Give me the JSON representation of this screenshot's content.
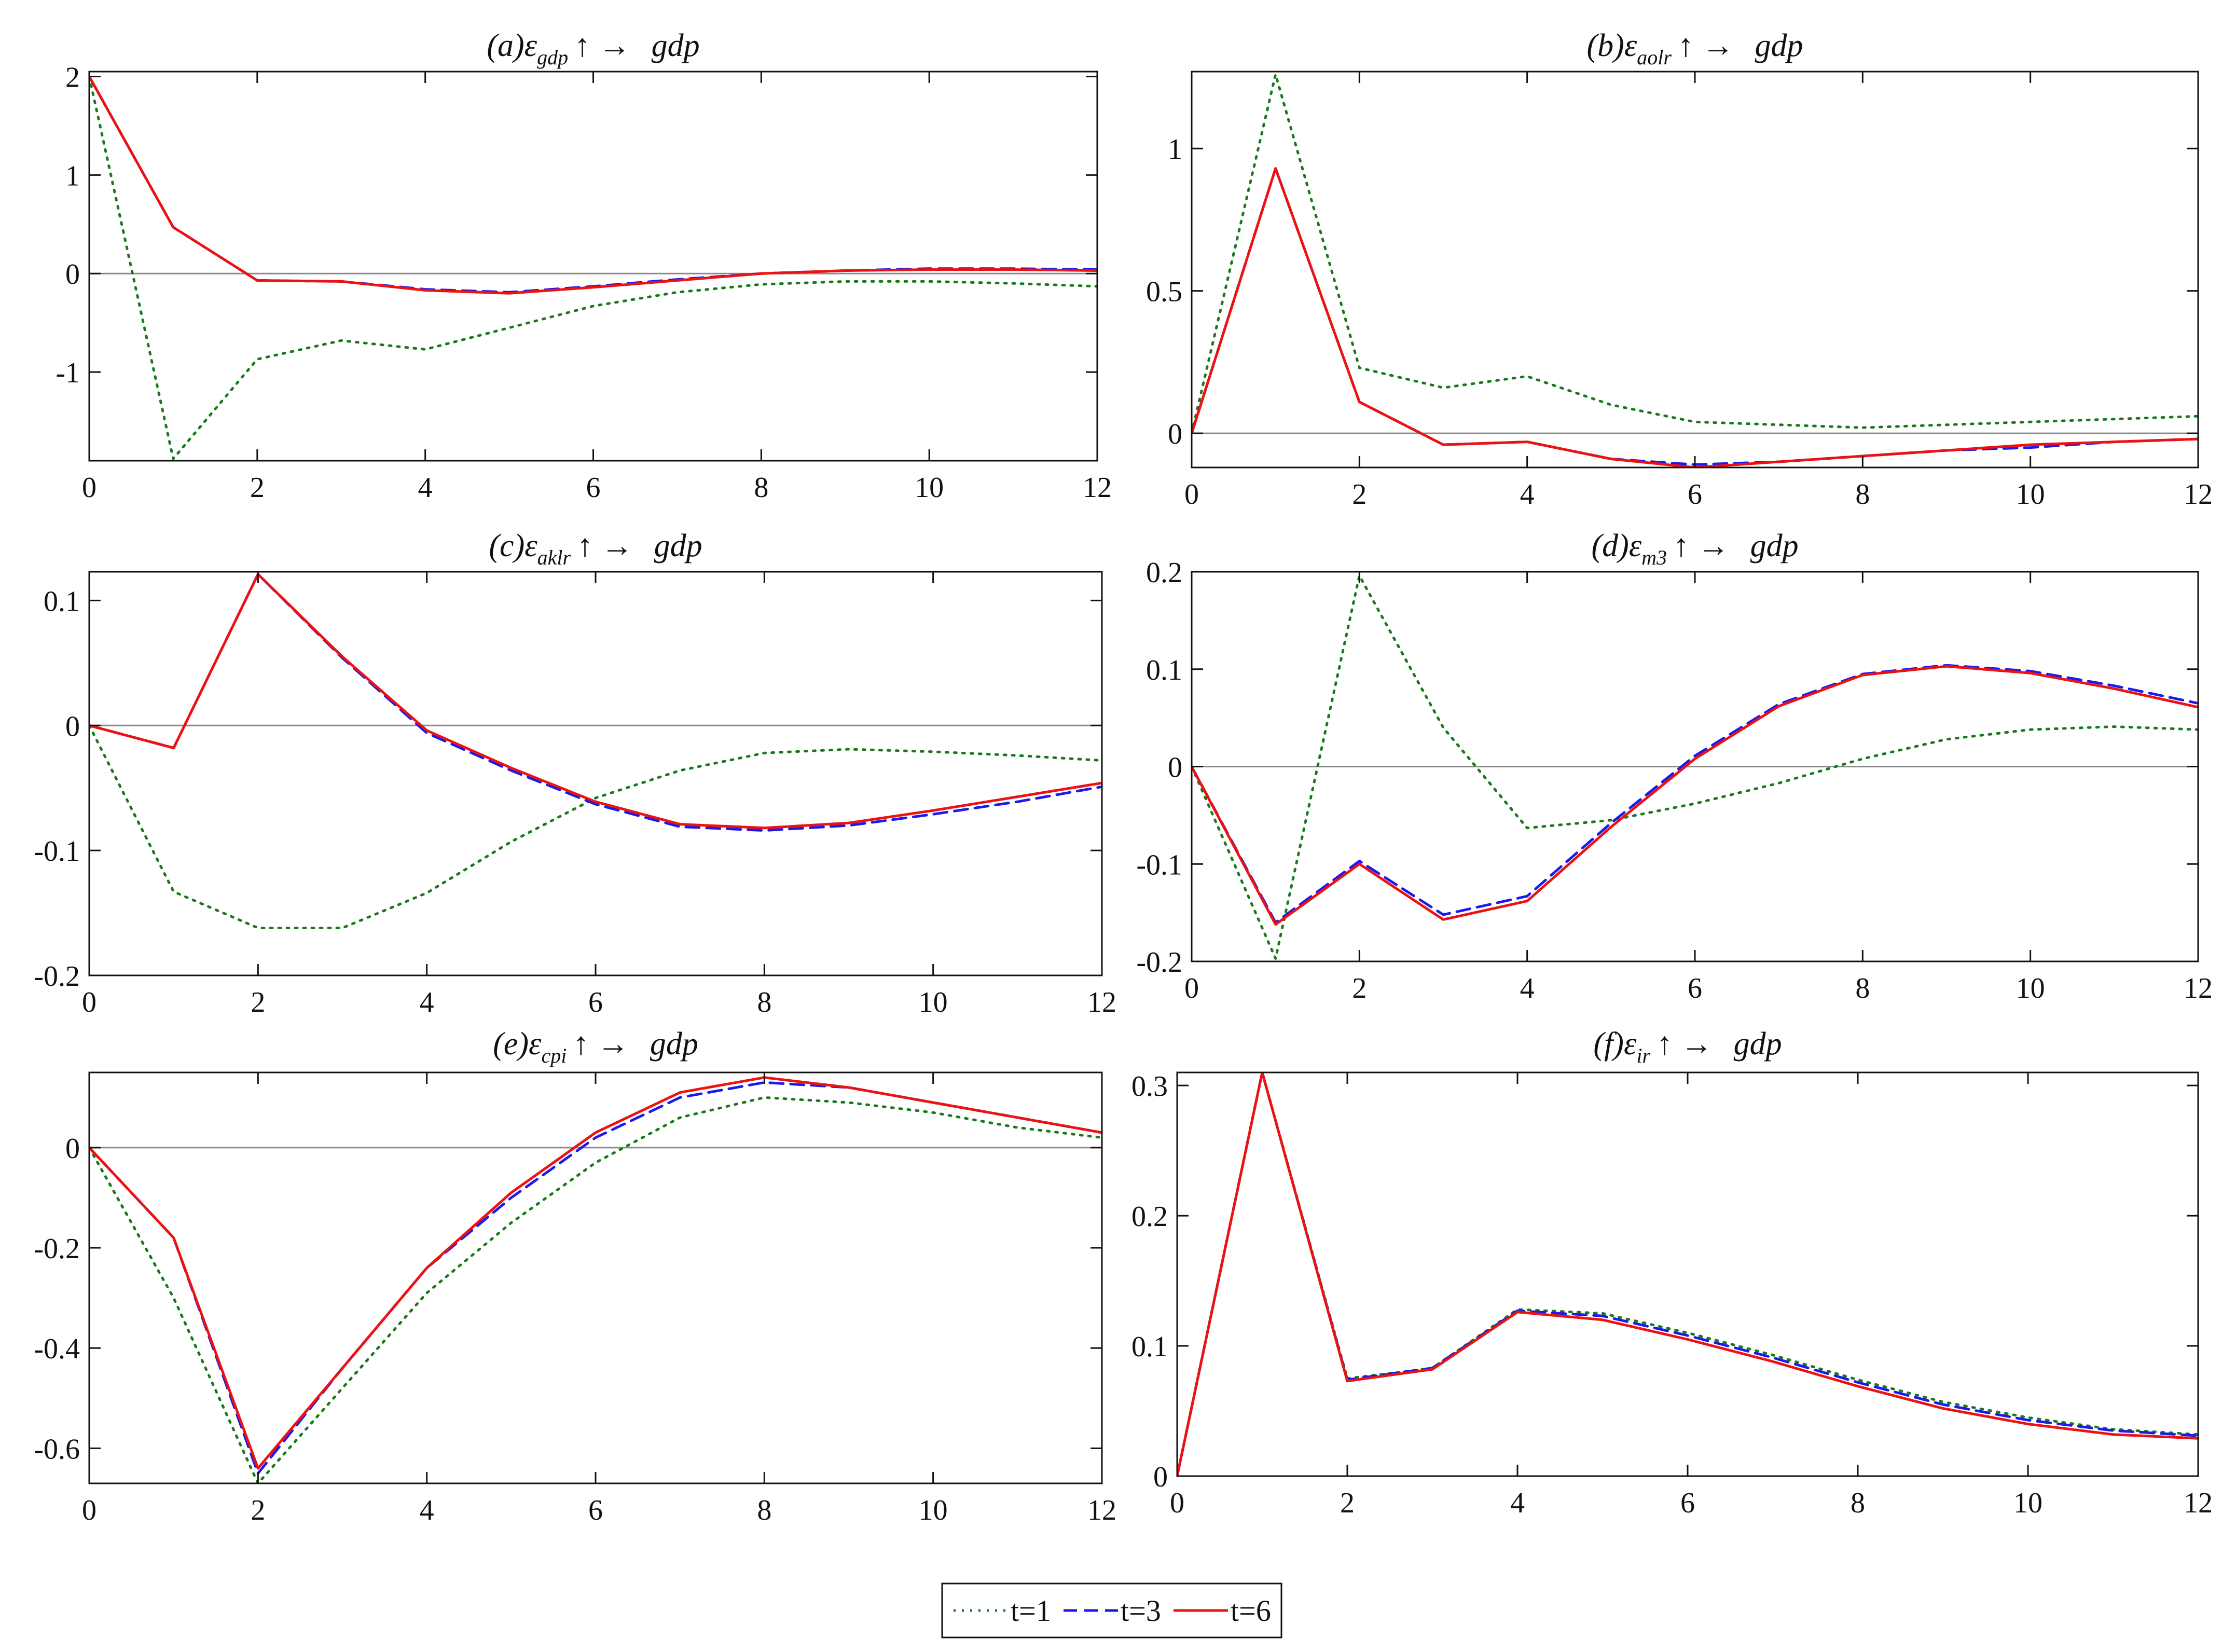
{
  "legend": {
    "entries": [
      {
        "label": "t=1",
        "color": "#1a7a1a",
        "style": "dotted"
      },
      {
        "label": "t=3",
        "color": "#1a1aee",
        "style": "dashed"
      },
      {
        "label": "t=6",
        "color": "#ee1111",
        "style": "solid"
      }
    ]
  },
  "chart_data": [
    {
      "type": "line",
      "title": {
        "prefix": "(a)",
        "eps": "ε",
        "sub": "gdp",
        "arrow": "↑ →",
        "target": "gdp"
      },
      "xlim": [
        0,
        12
      ],
      "ylim": [
        -1.9,
        2.05
      ],
      "xticks": [
        0,
        2,
        4,
        6,
        8,
        10,
        12
      ],
      "xtick_labels": [
        "0",
        "2",
        "4",
        "6",
        "8",
        "10",
        "12"
      ],
      "yticks": [
        -1,
        0,
        1,
        2
      ],
      "ytick_labels": [
        "-1",
        "0",
        "1",
        "2"
      ],
      "x": [
        0,
        1,
        2,
        3,
        4,
        5,
        6,
        7,
        8,
        9,
        10,
        11,
        12
      ],
      "series": [
        {
          "name": "t=1",
          "values": [
            2.0,
            -1.88,
            -0.87,
            -0.68,
            -0.77,
            -0.55,
            -0.33,
            -0.19,
            -0.11,
            -0.08,
            -0.08,
            -0.1,
            -0.13
          ]
        },
        {
          "name": "t=3",
          "values": [
            2.0,
            0.47,
            -0.07,
            -0.08,
            -0.16,
            -0.19,
            -0.13,
            -0.06,
            0.0,
            0.03,
            0.05,
            0.05,
            0.04
          ]
        },
        {
          "name": "t=6",
          "values": [
            2.0,
            0.47,
            -0.07,
            -0.08,
            -0.17,
            -0.2,
            -0.14,
            -0.07,
            0.0,
            0.03,
            0.04,
            0.04,
            0.03
          ]
        }
      ]
    },
    {
      "type": "line",
      "title": {
        "prefix": "(b)",
        "eps": "ε",
        "sub": "aolr",
        "arrow": "↑ →",
        "target": "gdp"
      },
      "xlim": [
        0,
        12
      ],
      "ylim": [
        -0.12,
        1.27
      ],
      "xticks": [
        0,
        2,
        4,
        6,
        8,
        10,
        12
      ],
      "xtick_labels": [
        "0",
        "2",
        "4",
        "6",
        "8",
        "10",
        "12"
      ],
      "yticks": [
        0,
        0.5,
        1
      ],
      "ytick_labels": [
        "0",
        "0.5",
        "1"
      ],
      "x": [
        0,
        1,
        2,
        3,
        4,
        5,
        6,
        7,
        8,
        9,
        10,
        11,
        12
      ],
      "series": [
        {
          "name": "t=1",
          "values": [
            0.0,
            1.26,
            0.23,
            0.16,
            0.2,
            0.1,
            0.04,
            0.03,
            0.02,
            0.03,
            0.04,
            0.05,
            0.06
          ]
        },
        {
          "name": "t=3",
          "values": [
            0.0,
            0.93,
            0.11,
            -0.04,
            -0.03,
            -0.09,
            -0.11,
            -0.1,
            -0.08,
            -0.06,
            -0.05,
            -0.03,
            -0.02
          ]
        },
        {
          "name": "t=6",
          "values": [
            0.0,
            0.93,
            0.11,
            -0.04,
            -0.03,
            -0.09,
            -0.12,
            -0.1,
            -0.08,
            -0.06,
            -0.04,
            -0.03,
            -0.02
          ]
        }
      ]
    },
    {
      "type": "line",
      "title": {
        "prefix": "(c)",
        "eps": "ε",
        "sub": "aklr",
        "arrow": "↑ →",
        "target": "gdp"
      },
      "xlim": [
        0,
        12
      ],
      "ylim": [
        -0.2,
        0.123
      ],
      "xticks": [
        0,
        2,
        4,
        6,
        8,
        10,
        12
      ],
      "xtick_labels": [
        "0",
        "2",
        "4",
        "6",
        "8",
        "10",
        "12"
      ],
      "yticks": [
        -0.2,
        -0.1,
        0,
        0.1
      ],
      "ytick_labels": [
        "-0.2",
        "-0.1",
        "0",
        "0.1"
      ],
      "x": [
        0,
        1,
        2,
        3,
        4,
        5,
        6,
        7,
        8,
        9,
        10,
        11,
        12
      ],
      "series": [
        {
          "name": "t=1",
          "values": [
            0.0,
            -0.133,
            -0.162,
            -0.162,
            -0.134,
            -0.093,
            -0.058,
            -0.036,
            -0.022,
            -0.019,
            -0.021,
            -0.024,
            -0.028
          ]
        },
        {
          "name": "t=3",
          "values": [
            0.0,
            -0.018,
            0.121,
            0.054,
            -0.006,
            -0.036,
            -0.063,
            -0.081,
            -0.084,
            -0.08,
            -0.071,
            -0.061,
            -0.049
          ]
        },
        {
          "name": "t=6",
          "values": [
            0.0,
            -0.018,
            0.121,
            0.055,
            -0.004,
            -0.034,
            -0.061,
            -0.079,
            -0.082,
            -0.078,
            -0.068,
            -0.057,
            -0.046
          ]
        }
      ]
    },
    {
      "type": "line",
      "title": {
        "prefix": "(d)",
        "eps": "ε",
        "sub": "m3",
        "arrow": "↑ →",
        "target": "gdp"
      },
      "xlim": [
        0,
        12
      ],
      "ylim": [
        -0.2,
        0.2
      ],
      "xticks": [
        0,
        2,
        4,
        6,
        8,
        10,
        12
      ],
      "xtick_labels": [
        "0",
        "2",
        "4",
        "6",
        "8",
        "10",
        "12"
      ],
      "yticks": [
        -0.2,
        -0.1,
        0,
        0.1,
        0.2
      ],
      "ytick_labels": [
        "-0.2",
        "-0.1",
        "0",
        "0.1",
        "0.2"
      ],
      "x": [
        0,
        1,
        2,
        3,
        4,
        5,
        6,
        7,
        8,
        9,
        10,
        11,
        12
      ],
      "series": [
        {
          "name": "t=1",
          "values": [
            0.0,
            -0.197,
            0.196,
            0.04,
            -0.063,
            -0.055,
            -0.038,
            -0.017,
            0.008,
            0.028,
            0.038,
            0.041,
            0.038
          ]
        },
        {
          "name": "t=3",
          "values": [
            0.0,
            -0.16,
            -0.097,
            -0.152,
            -0.133,
            -0.058,
            0.011,
            0.064,
            0.095,
            0.104,
            0.098,
            0.083,
            0.065
          ]
        },
        {
          "name": "t=6",
          "values": [
            0.0,
            -0.162,
            -0.1,
            -0.157,
            -0.138,
            -0.062,
            0.008,
            0.062,
            0.094,
            0.103,
            0.096,
            0.08,
            0.061
          ]
        }
      ]
    },
    {
      "type": "line",
      "title": {
        "prefix": "(e)",
        "eps": "ε",
        "sub": "cpi",
        "arrow": "↑ →",
        "target": "gdp"
      },
      "xlim": [
        0,
        12
      ],
      "ylim": [
        -0.67,
        0.15
      ],
      "xticks": [
        0,
        2,
        4,
        6,
        8,
        10,
        12
      ],
      "xtick_labels": [
        "0",
        "2",
        "4",
        "6",
        "8",
        "10",
        "12"
      ],
      "yticks": [
        -0.6,
        -0.4,
        -0.2,
        0
      ],
      "ytick_labels": [
        "-0.6",
        "-0.4",
        "-0.2",
        "0"
      ],
      "x": [
        0,
        1,
        2,
        3,
        4,
        5,
        6,
        7,
        8,
        9,
        10,
        11,
        12
      ],
      "series": [
        {
          "name": "t=1",
          "values": [
            0.0,
            -0.3,
            -0.67,
            -0.48,
            -0.29,
            -0.15,
            -0.03,
            0.06,
            0.1,
            0.09,
            0.07,
            0.04,
            0.02
          ]
        },
        {
          "name": "t=3",
          "values": [
            0.0,
            -0.18,
            -0.65,
            -0.44,
            -0.24,
            -0.1,
            0.02,
            0.1,
            0.13,
            0.12,
            0.09,
            0.06,
            0.03
          ]
        },
        {
          "name": "t=6",
          "values": [
            0.0,
            -0.18,
            -0.64,
            -0.44,
            -0.24,
            -0.09,
            0.03,
            0.11,
            0.14,
            0.12,
            0.09,
            0.06,
            0.03
          ]
        }
      ]
    },
    {
      "type": "line",
      "title": {
        "prefix": "(f)",
        "eps": "ε",
        "sub": "ir",
        "arrow": "↑ →",
        "target": "gdp"
      },
      "xlim": [
        0,
        12
      ],
      "ylim": [
        0,
        0.31
      ],
      "xticks": [
        0,
        2,
        4,
        6,
        8,
        10,
        12
      ],
      "xtick_labels": [
        "0",
        "2",
        "4",
        "6",
        "8",
        "10",
        "12"
      ],
      "yticks": [
        0,
        0.1,
        0.2,
        0.3
      ],
      "ytick_labels": [
        "0",
        "0.1",
        "0.2",
        "0.3"
      ],
      "x": [
        0,
        1,
        2,
        3,
        4,
        5,
        6,
        7,
        8,
        9,
        10,
        11,
        12
      ],
      "series": [
        {
          "name": "t=1",
          "values": [
            0.0,
            0.31,
            0.075,
            0.083,
            0.128,
            0.125,
            0.11,
            0.093,
            0.074,
            0.057,
            0.045,
            0.036,
            0.032
          ]
        },
        {
          "name": "t=3",
          "values": [
            0.0,
            0.31,
            0.074,
            0.083,
            0.127,
            0.123,
            0.108,
            0.091,
            0.072,
            0.055,
            0.043,
            0.035,
            0.031
          ]
        },
        {
          "name": "t=6",
          "values": [
            0.0,
            0.31,
            0.073,
            0.082,
            0.126,
            0.12,
            0.105,
            0.088,
            0.069,
            0.052,
            0.04,
            0.032,
            0.029
          ]
        }
      ]
    }
  ]
}
